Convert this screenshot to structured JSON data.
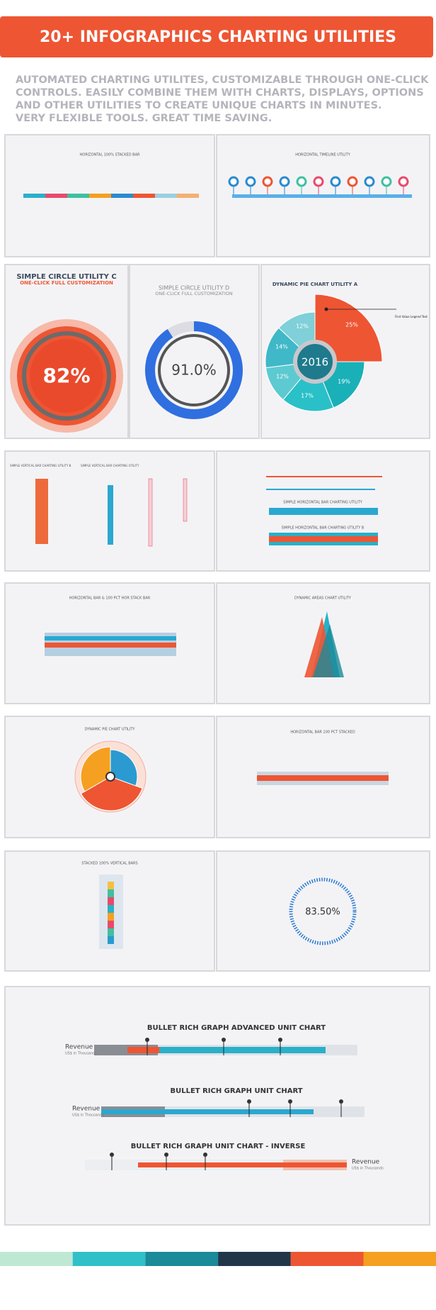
{
  "header": {
    "title": "20+ INFOGRAPHICS CHARTING UTILITIES"
  },
  "description": {
    "lines": [
      "AUTOMATED CHARTING UTILITES, CUSTOMIZABLE THROUGH ONE-CLICK",
      "CONTROLS. EASILY COMBINE THEM WITH CHARTS, DISPLAYS, OPTIONS",
      "AND OTHER UTILITIES TO CREATE UNIQUE CHARTS IN MINUTES.",
      "VERY FLEXIBLE TOOLS. GREAT TIME SAVING."
    ]
  },
  "panels": {
    "stacked_bar": {
      "title": "HORIZONTAL 100% STACKED BAR"
    },
    "timeline": {
      "title": "HORIZONTAL TIMELINE UTILITY"
    },
    "circle_c": {
      "title": "SIMPLE CIRCLE UTILITY C",
      "subtitle": "ONE-CLICK FULL CUSTOMIZATION",
      "value": "82%"
    },
    "circle_d": {
      "title": "SIMPLE CIRCLE UTILITY D",
      "subtitle": "ONE-CLICK FULL CUSTOMIZATION",
      "value": "91.0%"
    },
    "pie_a": {
      "title": "DYNAMIC PIE CHART UTILITY A",
      "center": "2016",
      "labels": [
        "25%",
        "19%",
        "17%",
        "12%",
        "14%",
        "12%"
      ],
      "legend": "First Value Legend Text"
    },
    "vertical_bars": {
      "titles": [
        "SIMPLE VERTICAL BAR CHARTING UTILITY B",
        "SIMPLE VERTICAL BAR CHARTING UTILITY"
      ]
    },
    "horizontal_bars": {
      "titles": [
        "SIMPLE HORIZONTAL BAR CHARTING UTILITY",
        "SIMPLE HORIZONTAL BAR CHARTING UTILITY B"
      ]
    },
    "hbar_stack": {
      "title": "HORIZONTAL BAR & 100 PCT HOR STACK BAR"
    },
    "areas": {
      "title": "DYNAMIC AREAS CHART UTILITY"
    },
    "pie": {
      "title": "DYNAMIC PIE CHART UTILITY"
    },
    "hbar_100": {
      "title": "HORIZONTAL BAR 100 PCT STACKED"
    },
    "stacked_vertical": {
      "title": "STACKED 100% VERTICAL BARS"
    },
    "ring": {
      "value": "83.50%"
    },
    "bullets": {
      "titles": [
        "BULLET RICH GRAPH ADVANCED UNIT CHART",
        "BULLET RICH GRAPH UNIT CHART",
        "BULLET RICH GRAPH UNIT CHART - INVERSE"
      ],
      "measure": "Revenue",
      "unit": "US$ in Thousands"
    }
  }
}
